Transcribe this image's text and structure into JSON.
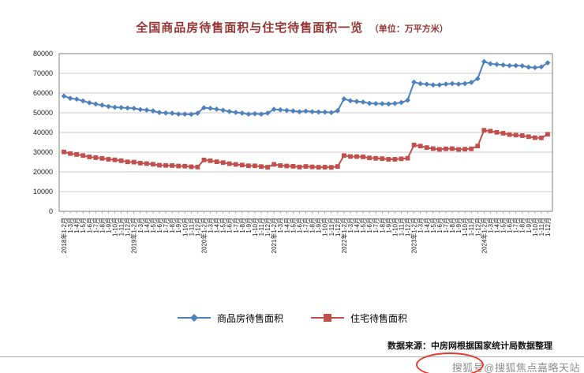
{
  "title": {
    "main": "全国商品房待售面积与住宅待售面积一览",
    "unit": "（单位：万平方米）"
  },
  "colors": {
    "title": "#943634",
    "grid": "#c9c9c9",
    "plot_border": "#7f7f7f",
    "series_blue": "#4F81BD",
    "series_red": "#C0504D",
    "axis_text": "#1a1a1a",
    "watermark": "#8f8f8f",
    "divider": "#b0b0b0",
    "annotation": "#e8372c"
  },
  "chart_data": {
    "type": "line",
    "title": "全国商品房待售面积与住宅待售面积一览",
    "unit": "万平方米",
    "ylim": [
      0,
      80000
    ],
    "y_ticks": [
      0,
      10000,
      20000,
      30000,
      40000,
      50000,
      60000,
      70000,
      80000
    ],
    "grid": true,
    "legend_position": "bottom",
    "x_labels": [
      "2018年1-2月",
      "1-3月",
      "1-4月",
      "1-5月",
      "1-6月",
      "1-7月",
      "1-8月",
      "1-9月",
      "1-10月",
      "1-11月",
      "1-12月",
      "2019年1-2月",
      "1-3月",
      "1-4月",
      "1-5月",
      "1-6月",
      "1-7月",
      "1-8月",
      "1-9月",
      "1-10月",
      "1-11月",
      "1-12月",
      "2020年1-2月",
      "1-3月",
      "1-4月",
      "1-5月",
      "1-6月",
      "1-7月",
      "1-8月",
      "1-9月",
      "1-10月",
      "1-11月",
      "1-12月",
      "2021年1-2月",
      "1-3月",
      "1-4月",
      "1-5月",
      "1-6月",
      "1-7月",
      "1-8月",
      "1-9月",
      "1-10月",
      "1-11月",
      "1-12月",
      "2022年1-2月",
      "1-3月",
      "1-4月",
      "1-5月",
      "1-6月",
      "1-7月",
      "1-8月",
      "1-9月",
      "1-10月",
      "1-11月",
      "1-12月",
      "2023年1-2月",
      "1-3月",
      "1-4月",
      "1-5月",
      "1-6月",
      "1-7月",
      "1-8月",
      "1-9月",
      "1-10月",
      "1-11月",
      "1-12月",
      "2024年1-2月",
      "1-3月",
      "1-4月",
      "1-5月",
      "1-6月",
      "1-7月",
      "1-8月",
      "1-9月",
      "1-10月",
      "1-11月",
      "1-12月"
    ],
    "series": [
      {
        "name": "商品房待售面积",
        "color": "#4F81BD",
        "marker": "diamond",
        "values": [
          58468,
          57329,
          56898,
          56010,
          55083,
          54428,
          53873,
          53191,
          52789,
          52627,
          52414,
          52251,
          51646,
          51380,
          50928,
          50162,
          49876,
          49784,
          49346,
          49323,
          49221,
          49821,
          52563,
          52255,
          51825,
          51280,
          50662,
          50213,
          49864,
          49295,
          49492,
          49287,
          49850,
          51753,
          51520,
          51178,
          50928,
          50521,
          50864,
          50539,
          50385,
          50347,
          50092,
          51023,
          57026,
          56113,
          55735,
          55433,
          54784,
          54655,
          54605,
          54467,
          54734,
          55203,
          56366,
          65528,
          64770,
          64487,
          64120,
          64159,
          64564,
          64795,
          64537,
          64835,
          65385,
          67295,
          75969,
          74833,
          74553,
          74256,
          73894,
          73926,
          73795,
          73113,
          72909,
          73286,
          75327
        ]
      },
      {
        "name": "住宅待售面积",
        "color": "#C0504D",
        "marker": "square",
        "values": [
          30141,
          29309,
          28844,
          28307,
          27608,
          27238,
          26869,
          26400,
          26130,
          25690,
          25091,
          24953,
          24474,
          24203,
          23907,
          23409,
          23289,
          23239,
          22993,
          22913,
          22615,
          22473,
          26068,
          25687,
          25156,
          24727,
          24173,
          23805,
          23494,
          23098,
          23073,
          22716,
          22379,
          23833,
          23230,
          23003,
          22844,
          22472,
          22776,
          22558,
          22358,
          22414,
          22303,
          22761,
          28294,
          27813,
          27772,
          27634,
          27104,
          26898,
          26747,
          26397,
          26398,
          26657,
          26947,
          33656,
          33086,
          32342,
          31810,
          31439,
          31703,
          31799,
          31393,
          31540,
          31713,
          33119,
          41118,
          40682,
          40081,
          39615,
          38932,
          38671,
          38416,
          37858,
          37368,
          37271,
          39088
        ]
      }
    ]
  },
  "footer": {
    "source": "数据来源：中房网根据国家统计局数据整理",
    "watermark": "搜狐号@搜狐焦点嘉略天站"
  }
}
